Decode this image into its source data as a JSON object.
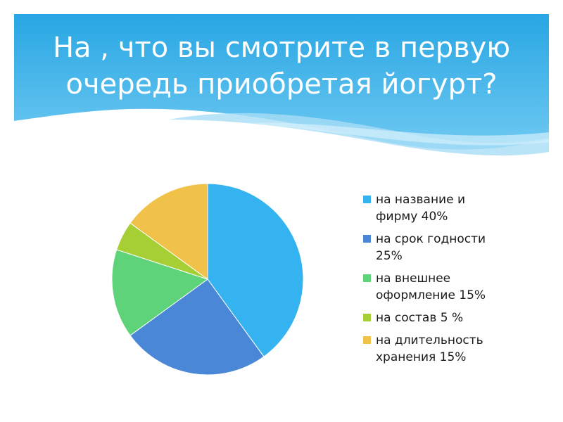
{
  "slide": {
    "title": "На , что вы смотрите в первую\nочередь приобретая йогурт?",
    "header_colors": {
      "top": "#28a6e3",
      "bottom": "#6fc9f2"
    }
  },
  "chart_data": {
    "type": "pie",
    "title": "",
    "legend_position": "right",
    "slices": [
      {
        "label": "на название и\nфирму 40%",
        "value": 40,
        "color": "#35b3f0"
      },
      {
        "label": "на срок годности\n25%",
        "value": 25,
        "color": "#4a87d6"
      },
      {
        "label": "на внешнее\nоформление 15%",
        "value": 15,
        "color": "#5fd37a"
      },
      {
        "label": "на состав 5 %",
        "value": 5,
        "color": "#a6cf35"
      },
      {
        "label": "на длительность\nхранения 15%",
        "value": 15,
        "color": "#f1c24a"
      }
    ]
  }
}
